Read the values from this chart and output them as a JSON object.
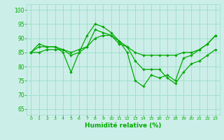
{
  "xlabel": "Humidité relative (%)",
  "xlim": [
    -0.5,
    23.5
  ],
  "ylim": [
    63,
    102
  ],
  "yticks": [
    65,
    70,
    75,
    80,
    85,
    90,
    95,
    100
  ],
  "xticks": [
    0,
    1,
    2,
    3,
    4,
    5,
    6,
    7,
    8,
    9,
    10,
    11,
    12,
    13,
    14,
    15,
    16,
    17,
    18,
    19,
    20,
    21,
    22,
    23
  ],
  "bg_color": "#cceee8",
  "grid_color": "#99ddcc",
  "line_color": "#00aa00",
  "lines": [
    [
      85,
      88,
      87,
      87,
      85,
      78,
      85,
      91,
      95,
      94,
      92,
      89,
      85,
      75,
      73,
      77,
      76,
      77,
      75,
      83,
      84,
      86,
      88,
      91
    ],
    [
      85,
      87,
      87,
      87,
      86,
      85,
      86,
      87,
      90,
      91,
      91,
      88,
      87,
      85,
      84,
      84,
      84,
      84,
      84,
      85,
      85,
      86,
      88,
      91
    ],
    [
      85,
      85,
      86,
      86,
      86,
      84,
      85,
      87,
      93,
      92,
      91,
      89,
      87,
      82,
      79,
      79,
      79,
      76,
      74,
      78,
      81,
      82,
      84,
      86
    ]
  ]
}
